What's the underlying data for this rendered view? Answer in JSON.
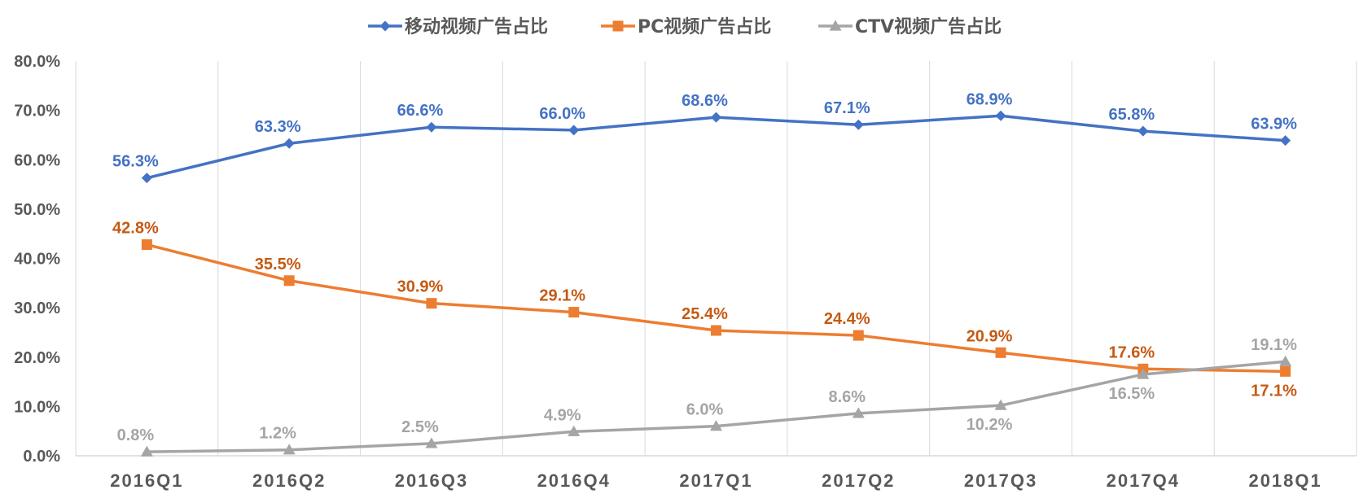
{
  "chart_data": {
    "type": "line",
    "categories": [
      "2016Q1",
      "2016Q2",
      "2016Q3",
      "2016Q4",
      "2017Q1",
      "2017Q2",
      "2017Q3",
      "2017Q4",
      "2018Q1"
    ],
    "y_tick_labels": [
      "0.0%",
      "10.0%",
      "20.0%",
      "30.0%",
      "40.0%",
      "50.0%",
      "60.0%",
      "70.0%",
      "80.0%"
    ],
    "ylim": [
      0,
      80
    ],
    "grid": "vertical",
    "legend_position": "top",
    "series": [
      {
        "name": "移动视频广告占比",
        "color": "#4472C4",
        "label_color": "#4472C4",
        "marker": "diamond",
        "values": [
          56.3,
          63.3,
          66.6,
          66.0,
          68.6,
          67.1,
          68.9,
          65.8,
          63.9
        ],
        "labels": [
          "56.3%",
          "63.3%",
          "66.6%",
          "66.0%",
          "68.6%",
          "67.1%",
          "68.9%",
          "65.8%",
          "63.9%"
        ]
      },
      {
        "name": "PC视频广告占比",
        "color": "#ED7D31",
        "label_color": "#C55A11",
        "marker": "square",
        "values": [
          42.8,
          35.5,
          30.9,
          29.1,
          25.4,
          24.4,
          20.9,
          17.6,
          17.1
        ],
        "labels": [
          "42.8%",
          "35.5%",
          "30.9%",
          "29.1%",
          "25.4%",
          "24.4%",
          "20.9%",
          "17.6%",
          "17.1%"
        ]
      },
      {
        "name": "CTV视频广告占比",
        "color": "#A5A5A5",
        "label_color": "#A5A5A5",
        "marker": "triangle",
        "values": [
          0.8,
          1.2,
          2.5,
          4.9,
          6.0,
          8.6,
          10.2,
          16.5,
          19.1
        ],
        "labels": [
          "0.8%",
          "1.2%",
          "2.5%",
          "4.9%",
          "6.0%",
          "8.6%",
          "10.2%",
          "16.5%",
          "19.1%"
        ]
      }
    ]
  }
}
